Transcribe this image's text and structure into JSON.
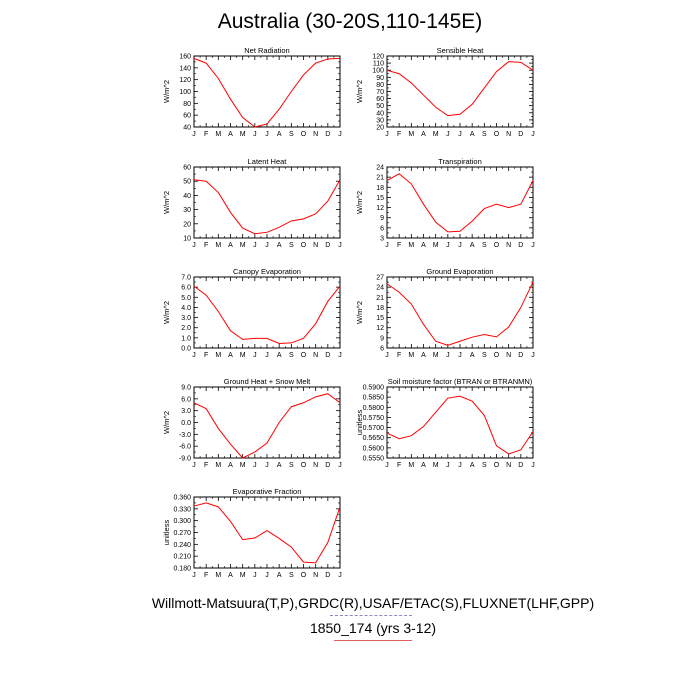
{
  "page": {
    "title": "Australia (30-20S,110-145E)",
    "footer_line1": "Willmott-Matsuura(T,P),GRDC(R),USAF/ETAC(S),FLUXNET(LHF,GPP)",
    "footer_line2": "1850_174 (yrs 3-12)"
  },
  "colors": {
    "series": "#ff0000",
    "axis": "#000000"
  },
  "chart_data": [
    {
      "type": "line",
      "title": "Net Radiation",
      "ylabel": "W/m^2",
      "categories": [
        "J",
        "F",
        "M",
        "A",
        "M",
        "J",
        "J",
        "A",
        "S",
        "O",
        "N",
        "D",
        "J"
      ],
      "values": [
        156,
        148,
        122,
        87,
        56,
        40,
        45,
        70,
        100,
        128,
        148,
        155,
        156
      ],
      "ylim": [
        40,
        160
      ],
      "yticks": [
        "40",
        "60",
        "80",
        "100",
        "120",
        "140",
        "160"
      ]
    },
    {
      "type": "line",
      "title": "Sensible Heat",
      "ylabel": "W/m^2",
      "categories": [
        "J",
        "F",
        "M",
        "A",
        "M",
        "J",
        "J",
        "A",
        "S",
        "O",
        "N",
        "D",
        "J"
      ],
      "values": [
        100,
        95,
        82,
        65,
        48,
        36,
        38,
        52,
        75,
        98,
        112,
        111,
        100
      ],
      "ylim": [
        20,
        120
      ],
      "yticks": [
        "20",
        "30",
        "40",
        "50",
        "60",
        "70",
        "80",
        "90",
        "100",
        "110",
        "120"
      ]
    },
    {
      "type": "line",
      "title": "Latent Heat",
      "ylabel": "W/m^2",
      "categories": [
        "J",
        "F",
        "M",
        "A",
        "M",
        "J",
        "J",
        "A",
        "S",
        "O",
        "N",
        "D",
        "J"
      ],
      "values": [
        51,
        50,
        42,
        28,
        17,
        13,
        14,
        17.5,
        22,
        23.5,
        27,
        36,
        51
      ],
      "ylim": [
        10,
        60
      ],
      "yticks": [
        "10",
        "20",
        "30",
        "40",
        "50",
        "60"
      ]
    },
    {
      "type": "line",
      "title": "Transpiration",
      "ylabel": "W/m^2",
      "categories": [
        "J",
        "F",
        "M",
        "A",
        "M",
        "J",
        "J",
        "A",
        "S",
        "O",
        "N",
        "D",
        "J"
      ],
      "values": [
        20,
        22,
        19,
        13,
        7.7,
        4.8,
        5,
        8,
        11.7,
        13,
        12,
        13,
        20
      ],
      "ylim": [
        3,
        24
      ],
      "yticks": [
        "3",
        "6",
        "9",
        "12",
        "15",
        "18",
        "21",
        "24"
      ]
    },
    {
      "type": "line",
      "title": "Canopy Evaporation",
      "ylabel": "W/m^2",
      "categories": [
        "J",
        "F",
        "M",
        "A",
        "M",
        "J",
        "J",
        "A",
        "S",
        "O",
        "N",
        "D",
        "J"
      ],
      "values": [
        6.1,
        5.2,
        3.6,
        1.7,
        0.85,
        0.95,
        0.95,
        0.45,
        0.5,
        0.95,
        2.4,
        4.6,
        6.1
      ],
      "ylim": [
        0,
        7
      ],
      "yticks": [
        "0.0",
        "1.0",
        "2.0",
        "3.0",
        "4.0",
        "5.0",
        "6.0",
        "7.0"
      ]
    },
    {
      "type": "line",
      "title": "Ground Evaporation",
      "ylabel": "W/m^2",
      "categories": [
        "J",
        "F",
        "M",
        "A",
        "M",
        "J",
        "J",
        "A",
        "S",
        "O",
        "N",
        "D",
        "J"
      ],
      "values": [
        25,
        22.5,
        19,
        13,
        8,
        6.8,
        8,
        9.2,
        10,
        9.3,
        12.2,
        18,
        25.5
      ],
      "ylim": [
        6,
        27
      ],
      "yticks": [
        "6",
        "9",
        "12",
        "15",
        "18",
        "21",
        "24",
        "27"
      ]
    },
    {
      "type": "line",
      "title": "Ground Heat + Snow Melt",
      "ylabel": "W/m^2",
      "categories": [
        "J",
        "F",
        "M",
        "A",
        "M",
        "J",
        "J",
        "A",
        "S",
        "O",
        "N",
        "D",
        "J"
      ],
      "values": [
        5,
        3.5,
        -1.5,
        -5.5,
        -9,
        -7.5,
        -5.2,
        0,
        4,
        5,
        6.5,
        7.3,
        5
      ],
      "ylim": [
        -9,
        9
      ],
      "yticks": [
        "-9.0",
        "-6.0",
        "-3.0",
        "0.0",
        "3.0",
        "6.0",
        "9.0"
      ]
    },
    {
      "type": "line",
      "title": "Soil moisture factor (BTRAN or BTRANMN)",
      "ylabel": "unitless",
      "categories": [
        "J",
        "F",
        "M",
        "A",
        "M",
        "J",
        "J",
        "A",
        "S",
        "O",
        "N",
        "D",
        "J"
      ],
      "values": [
        0.5673,
        0.5645,
        0.566,
        0.5705,
        0.5775,
        0.5845,
        0.5855,
        0.583,
        0.576,
        0.561,
        0.557,
        0.559,
        0.568
      ],
      "ylim": [
        0.555,
        0.59
      ],
      "yticks": [
        "0.5550",
        "0.5600",
        "0.5650",
        "0.5700",
        "0.5750",
        "0.5800",
        "0.5850",
        "0.5900"
      ]
    },
    {
      "type": "line",
      "title": "Evaporative Fraction",
      "ylabel": "unitless",
      "categories": [
        "J",
        "F",
        "M",
        "A",
        "M",
        "J",
        "J",
        "A",
        "S",
        "O",
        "N",
        "D",
        "J"
      ],
      "values": [
        0.337,
        0.345,
        0.335,
        0.298,
        0.252,
        0.256,
        0.275,
        0.255,
        0.233,
        0.195,
        0.193,
        0.245,
        0.335
      ],
      "ylim": [
        0.18,
        0.36
      ],
      "yticks": [
        "0.180",
        "0.210",
        "0.240",
        "0.270",
        "0.300",
        "0.330",
        "0.360"
      ]
    }
  ]
}
